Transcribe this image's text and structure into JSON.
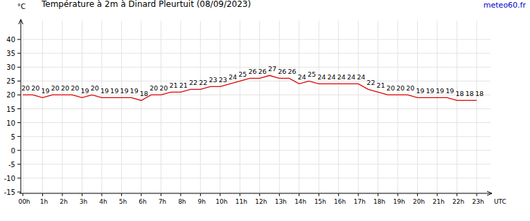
{
  "chart_data": {
    "type": "line",
    "title": "Température à 2m à Dinard Pleurtuit (08/09/2023)",
    "xlabel": "UTC",
    "ylabel": "°C",
    "annotations": [
      "meteo60.fr"
    ],
    "x": [
      0,
      0.5,
      1,
      1.5,
      2,
      2.5,
      3,
      3.5,
      4,
      4.5,
      5,
      5.5,
      6,
      6.5,
      7,
      7.5,
      8,
      8.5,
      9,
      9.5,
      10,
      10.5,
      11,
      11.5,
      12,
      12.5,
      13,
      13.5,
      14,
      14.5,
      15,
      15.5,
      16,
      16.5,
      17,
      17.5,
      18,
      18.5,
      19,
      19.5,
      20,
      20.5,
      21,
      21.5,
      22,
      22.5,
      23
    ],
    "values": [
      20,
      20,
      19,
      20,
      20,
      20,
      19,
      20,
      19,
      19,
      19,
      19,
      18,
      20,
      20,
      21,
      21,
      22,
      22,
      23,
      23,
      24,
      25,
      26,
      26,
      27,
      26,
      26,
      24,
      25,
      24,
      24,
      24,
      24,
      24,
      22,
      21,
      20,
      20,
      20,
      19,
      19,
      19,
      19,
      18,
      18,
      18
    ],
    "color": "#dd0000",
    "xlim": [
      0,
      23.7
    ],
    "xticks": [
      {
        "value": 0,
        "label": "00h"
      },
      {
        "value": 1,
        "label": "1h"
      },
      {
        "value": 2,
        "label": "2h"
      },
      {
        "value": 3,
        "label": "3h"
      },
      {
        "value": 4,
        "label": "4h"
      },
      {
        "value": 5,
        "label": "5h"
      },
      {
        "value": 6,
        "label": "6h"
      },
      {
        "value": 7,
        "label": "7h"
      },
      {
        "value": 8,
        "label": "8h"
      },
      {
        "value": 9,
        "label": "9h"
      },
      {
        "value": 10,
        "label": "10h"
      },
      {
        "value": 11,
        "label": "11h"
      },
      {
        "value": 12,
        "label": "12h"
      },
      {
        "value": 13,
        "label": "13h"
      },
      {
        "value": 14,
        "label": "14h"
      },
      {
        "value": 15,
        "label": "15h"
      },
      {
        "value": 16,
        "label": "16h"
      },
      {
        "value": 17,
        "label": "17h"
      },
      {
        "value": 18,
        "label": "18h"
      },
      {
        "value": 19,
        "label": "19h"
      },
      {
        "value": 20,
        "label": "20h"
      },
      {
        "value": 21,
        "label": "21h"
      },
      {
        "value": 22,
        "label": "22h"
      },
      {
        "value": 23,
        "label": "23h"
      }
    ],
    "ylim": [
      -15,
      45
    ],
    "yticks": [
      -15,
      -10,
      -5,
      0,
      5,
      10,
      15,
      20,
      25,
      30,
      35,
      40
    ],
    "grid": true,
    "data_labels": true
  }
}
